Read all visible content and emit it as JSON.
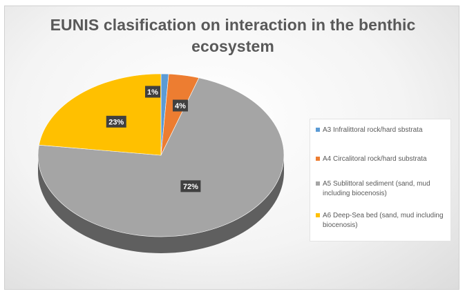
{
  "chart_data": {
    "type": "pie",
    "title": "EUNIS clasification on interaction in the benthic ecosystem",
    "categories": [
      "A3 Infralittoral rock/hard sbstrata",
      "A4 Circalitoral rock/hard substrata",
      "A5 Sublittoral sediment (sand, mud including biocenosis)",
      "A6 Deep-Sea bed (sand, mud including biocenosis)"
    ],
    "values": [
      1,
      4,
      72,
      23
    ],
    "data_labels": [
      "1%",
      "4%",
      "72%",
      "23%"
    ],
    "colors": [
      "#5b9bd5",
      "#ed7d31",
      "#a5a5a5",
      "#ffc000"
    ],
    "side_colors": [
      "#3f77ab",
      "#b25a1f",
      "#5f5f5f",
      "#c29100"
    ],
    "style": "3d-pie",
    "legend_position": "right"
  }
}
